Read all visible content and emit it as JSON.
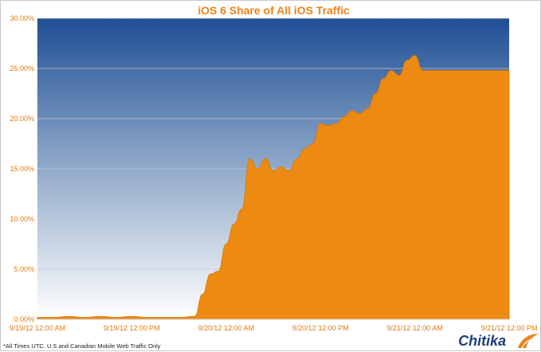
{
  "chart_data": {
    "type": "area",
    "title": "iOS 6 Share of All iOS Traffic",
    "xlabel": "",
    "ylabel": "",
    "ylim": [
      0,
      30
    ],
    "y_unit": "%",
    "y_ticks": [
      "0.00%",
      "5.00%",
      "10.00%",
      "15.00%",
      "20.00%",
      "25.00%",
      "30.00%"
    ],
    "x_ticks": [
      "9/19/12 12:00 AM",
      "9/19/12 12:00 PM",
      "9/20/12 12:00 AM",
      "9/20/12 12:00 PM",
      "9/21/12 12:00 AM",
      "9/21/12 12:00 PM"
    ],
    "x_hours_from_start": [
      0,
      2,
      4,
      6,
      8,
      10,
      12,
      14,
      16,
      18,
      20,
      21,
      22,
      23,
      24,
      25,
      26,
      27,
      28,
      29,
      30,
      31,
      32,
      33,
      34,
      35,
      36,
      37,
      38,
      39,
      40,
      41,
      42,
      43,
      44,
      45,
      46,
      47,
      48,
      49,
      50,
      51,
      52,
      53,
      54,
      55,
      56,
      57,
      58,
      59,
      60
    ],
    "series": [
      {
        "values": [
          0.2,
          0.2,
          0.3,
          0.2,
          0.3,
          0.2,
          0.3,
          0.2,
          0.2,
          0.2,
          0.3,
          2.5,
          4.5,
          4.8,
          7.5,
          9.5,
          11.0,
          16.0,
          15.0,
          16.0,
          14.8,
          15.2,
          14.8,
          16.0,
          17.0,
          17.5,
          19.5,
          19.3,
          19.5,
          20.2,
          20.8,
          20.5,
          21.0,
          22.5,
          24.0,
          24.8,
          24.3,
          25.8,
          26.3,
          24.8,
          24.8,
          24.8,
          24.8,
          24.8,
          24.8,
          24.8,
          24.8,
          24.8,
          24.8,
          24.8,
          24.8
        ]
      }
    ],
    "grid": true,
    "colors": {
      "fill": "#ec8a12",
      "plot_top": "#1f4f95",
      "plot_bottom": "#ffffff",
      "title": "#f0821a",
      "ticks": "#e07b12",
      "grid": "#c0c8d4"
    }
  },
  "footnote": "*All Times UTC. U.S and Canadian Mobile Web Traffic Only",
  "logo": {
    "text": "Chitika",
    "icon": "chitika-swoosh-icon"
  }
}
